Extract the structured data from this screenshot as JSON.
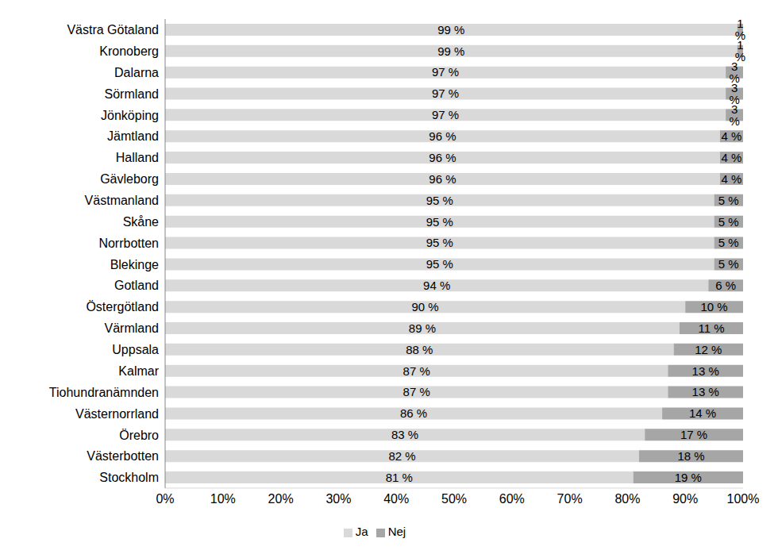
{
  "chart_data": {
    "type": "bar",
    "orientation": "horizontal",
    "stacked": true,
    "grid": false,
    "legend": "bottom",
    "data_labels": true,
    "categories": [
      "Västra Götaland",
      "Kronoberg",
      "Dalarna",
      "Sörmland",
      "Jönköping",
      "Jämtland",
      "Halland",
      "Gävleborg",
      "Västmanland",
      "Skåne",
      "Norrbotten",
      "Blekinge",
      "Gotland",
      "Östergötland",
      "Värmland",
      "Uppsala",
      "Kalmar",
      "Tiohundranämnden",
      "Västernorrland",
      "Örebro",
      "Västerbotten",
      "Stockholm"
    ],
    "series": [
      {
        "name": "Ja",
        "color": "#d9d9d9",
        "values": [
          99,
          99,
          97,
          97,
          97,
          96,
          96,
          96,
          95,
          95,
          95,
          95,
          94,
          90,
          89,
          88,
          87,
          87,
          86,
          83,
          82,
          81
        ],
        "value_labels": [
          "99 %",
          "99 %",
          "97 %",
          "97 %",
          "97 %",
          "96 %",
          "96 %",
          "96 %",
          "95 %",
          "95 %",
          "95 %",
          "95 %",
          "94 %",
          "90 %",
          "89 %",
          "88 %",
          "87 %",
          "87 %",
          "86 %",
          "83 %",
          "82 %",
          "81 %"
        ]
      },
      {
        "name": "Nej",
        "color": "#a6a6a6",
        "values": [
          1,
          1,
          3,
          3,
          3,
          4,
          4,
          4,
          5,
          5,
          5,
          5,
          6,
          10,
          11,
          12,
          13,
          13,
          14,
          17,
          18,
          19
        ],
        "value_labels": [
          "1 %",
          "1 %",
          "3 %",
          "3 %",
          "3 %",
          "4 %",
          "4 %",
          "4 %",
          "5 %",
          "5 %",
          "5 %",
          "5 %",
          "6 %",
          "10 %",
          "11 %",
          "12 %",
          "13 %",
          "13 %",
          "14 %",
          "17 %",
          "18 %",
          "19 %"
        ]
      }
    ],
    "xlim": [
      0,
      100
    ],
    "xticks": [
      {
        "value": 0,
        "label": "0%"
      },
      {
        "value": 10,
        "label": "10%"
      },
      {
        "value": 20,
        "label": "20%"
      },
      {
        "value": 30,
        "label": "30%"
      },
      {
        "value": 40,
        "label": "40%"
      },
      {
        "value": 50,
        "label": "50%"
      },
      {
        "value": 60,
        "label": "60%"
      },
      {
        "value": 70,
        "label": "70%"
      },
      {
        "value": 80,
        "label": "80%"
      },
      {
        "value": 90,
        "label": "90%"
      },
      {
        "value": 100,
        "label": "100%"
      }
    ]
  }
}
